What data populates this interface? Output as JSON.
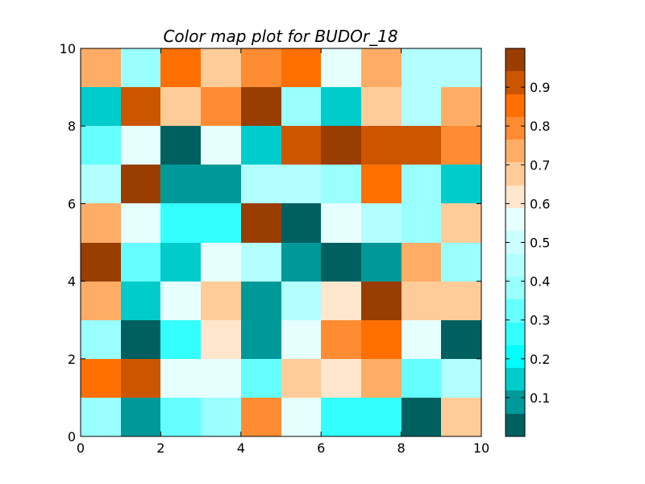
{
  "chart_data": {
    "type": "heatmap",
    "title": "Color map plot for BUDOr_18",
    "xlabel": "",
    "ylabel": "",
    "xlim": [
      0,
      10
    ],
    "ylim": [
      0,
      10
    ],
    "x_ticks": [
      "0",
      "2",
      "4",
      "6",
      "8",
      "10"
    ],
    "y_ticks": [
      "0",
      "2",
      "4",
      "6",
      "8",
      "10"
    ],
    "grid": false,
    "colorbar": {
      "range": [
        0,
        1
      ],
      "ticks": [
        "0.1",
        "0.2",
        "0.3",
        "0.4",
        "0.5",
        "0.6",
        "0.7",
        "0.8",
        "0.9"
      ],
      "colors": [
        "#006060",
        "#009999",
        "#00cccc",
        "#00ffff",
        "#33ffff",
        "#66ffff",
        "#99ffff",
        "#b3ffff",
        "#ccffff",
        "#e6ffff",
        "#ffe6cc",
        "#ffcc99",
        "#ffad66",
        "#ff8c33",
        "#ff6f00",
        "#cc5500",
        "#993d00"
      ]
    },
    "rows_top_to_bottom": [
      [
        0.75,
        0.38,
        0.86,
        0.7,
        0.81,
        0.86,
        0.54,
        0.75,
        0.47,
        0.47
      ],
      [
        0.15,
        0.91,
        0.7,
        0.81,
        0.97,
        0.41,
        0.15,
        0.7,
        0.47,
        0.75
      ],
      [
        0.32,
        0.53,
        0.03,
        0.53,
        0.15,
        0.91,
        0.97,
        0.91,
        0.91,
        0.81
      ],
      [
        0.47,
        0.97,
        0.09,
        0.09,
        0.47,
        0.47,
        0.41,
        0.86,
        0.38,
        0.15
      ],
      [
        0.75,
        0.56,
        0.26,
        0.26,
        0.97,
        0.03,
        0.56,
        0.47,
        0.41,
        0.7
      ],
      [
        0.97,
        0.32,
        0.15,
        0.56,
        0.47,
        0.09,
        0.03,
        0.09,
        0.75,
        0.38
      ],
      [
        0.75,
        0.15,
        0.53,
        0.7,
        0.09,
        0.47,
        0.62,
        0.97,
        0.7,
        0.7
      ],
      [
        0.41,
        0.03,
        0.26,
        0.62,
        0.09,
        0.56,
        0.81,
        0.86,
        0.53,
        0.03
      ],
      [
        0.86,
        0.91,
        0.53,
        0.53,
        0.32,
        0.7,
        0.62,
        0.75,
        0.32,
        0.47
      ],
      [
        0.41,
        0.09,
        0.32,
        0.38,
        0.81,
        0.53,
        0.26,
        0.26,
        0.03,
        0.7
      ]
    ]
  }
}
